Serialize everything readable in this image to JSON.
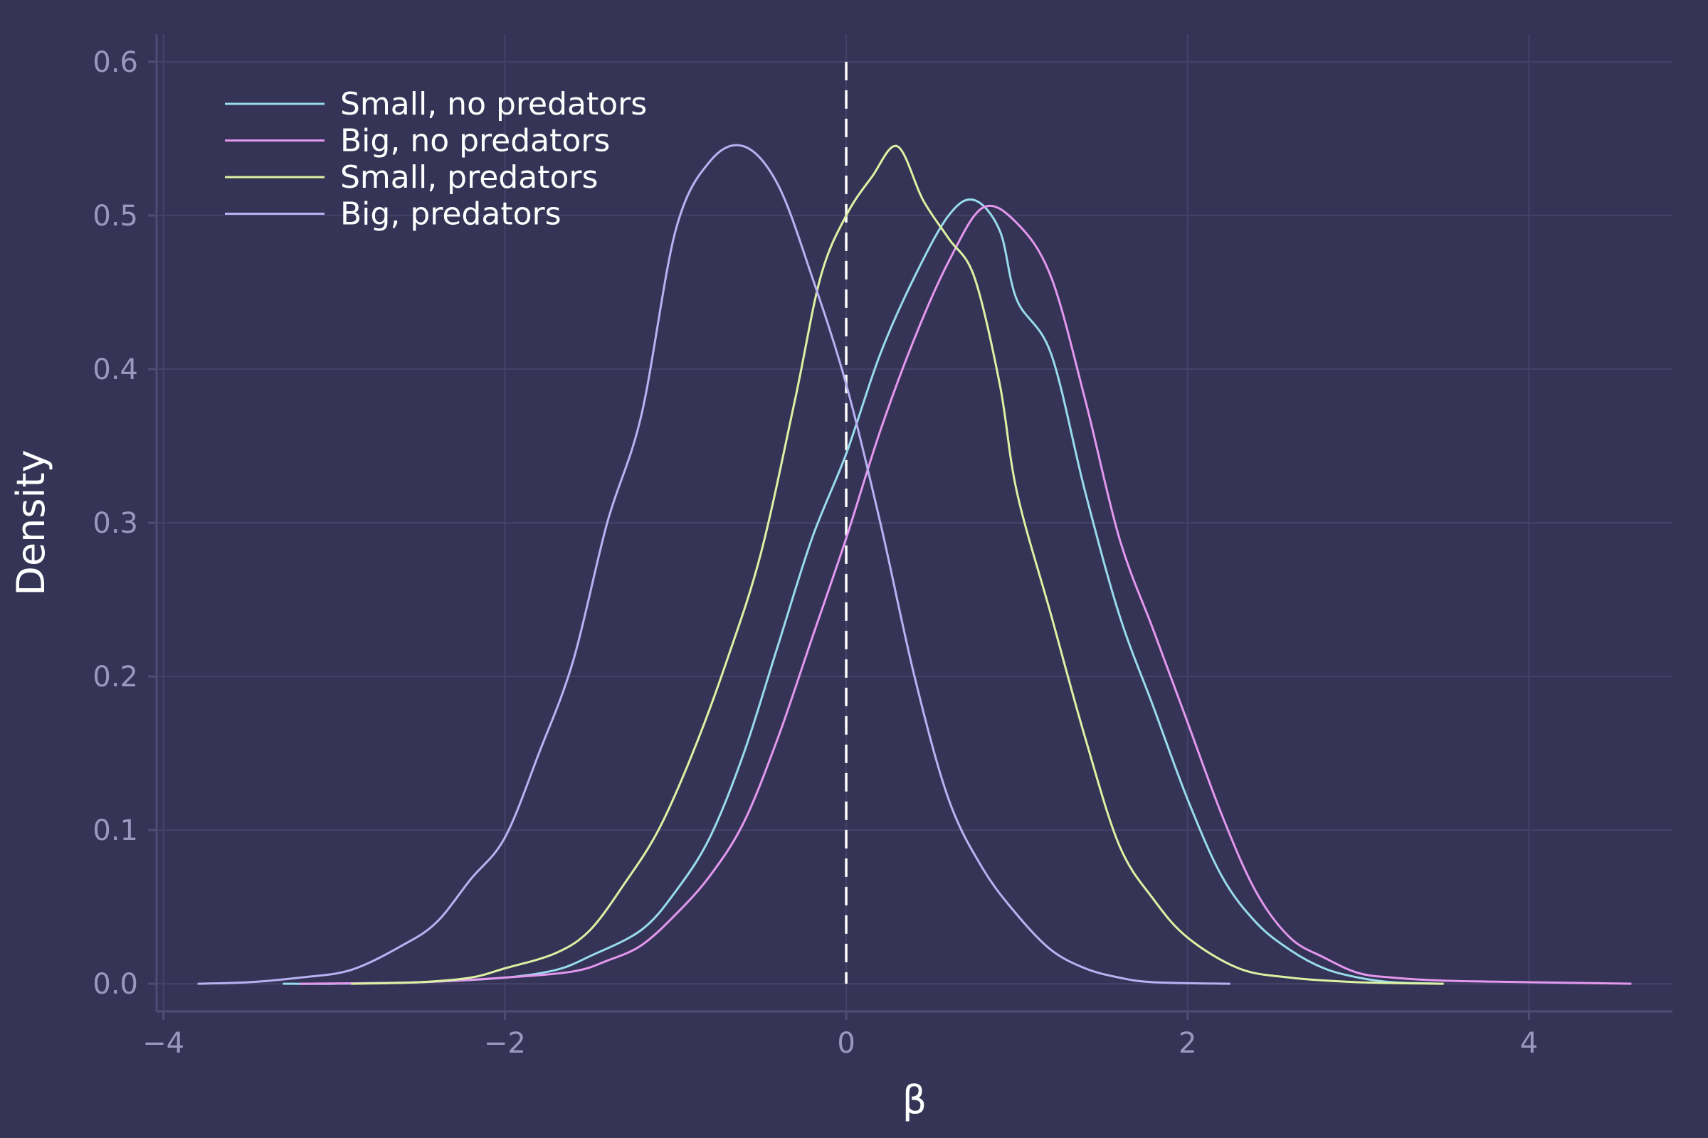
{
  "chart_data": {
    "type": "line",
    "xlabel": "β",
    "ylabel": "Density",
    "xlim": [
      -4.04,
      4.84
    ],
    "ylim": [
      -0.018,
      0.618
    ],
    "xticks": [
      -4,
      -2,
      0,
      2,
      4
    ],
    "xtick_labels": [
      "−4",
      "−2",
      "0",
      "2",
      "4"
    ],
    "yticks": [
      0.0,
      0.1,
      0.2,
      0.3,
      0.4,
      0.5,
      0.6
    ],
    "ytick_labels": [
      "0.0",
      "0.1",
      "0.2",
      "0.3",
      "0.4",
      "0.5",
      "0.6"
    ],
    "grid": true,
    "legend_position": "top-left",
    "reference_line": {
      "x": 0,
      "style": "dashed",
      "color": "#ffffff"
    },
    "series": [
      {
        "name": "Small, no predators",
        "color": "#98dbed",
        "points": [
          [
            -3.3,
            0.0
          ],
          [
            -3.0,
            0.0
          ],
          [
            -2.5,
            0.001
          ],
          [
            -2.0,
            0.004
          ],
          [
            -1.7,
            0.009
          ],
          [
            -1.5,
            0.018
          ],
          [
            -1.2,
            0.035
          ],
          [
            -1.0,
            0.06
          ],
          [
            -0.8,
            0.095
          ],
          [
            -0.6,
            0.15
          ],
          [
            -0.4,
            0.22
          ],
          [
            -0.2,
            0.29
          ],
          [
            0.0,
            0.345
          ],
          [
            0.2,
            0.41
          ],
          [
            0.4,
            0.46
          ],
          [
            0.6,
            0.5
          ],
          [
            0.75,
            0.51
          ],
          [
            0.9,
            0.49
          ],
          [
            1.0,
            0.445
          ],
          [
            1.2,
            0.41
          ],
          [
            1.4,
            0.32
          ],
          [
            1.6,
            0.24
          ],
          [
            1.8,
            0.18
          ],
          [
            2.0,
            0.12
          ],
          [
            2.2,
            0.07
          ],
          [
            2.4,
            0.04
          ],
          [
            2.6,
            0.022
          ],
          [
            2.8,
            0.01
          ],
          [
            3.0,
            0.004
          ],
          [
            3.2,
            0.001
          ],
          [
            3.5,
            0.0
          ]
        ]
      },
      {
        "name": "Big, no predators",
        "color": "#e398ee",
        "points": [
          [
            -3.2,
            0.0
          ],
          [
            -2.5,
            0.001
          ],
          [
            -2.0,
            0.004
          ],
          [
            -1.6,
            0.008
          ],
          [
            -1.4,
            0.015
          ],
          [
            -1.2,
            0.025
          ],
          [
            -1.0,
            0.045
          ],
          [
            -0.8,
            0.07
          ],
          [
            -0.6,
            0.105
          ],
          [
            -0.4,
            0.16
          ],
          [
            -0.2,
            0.225
          ],
          [
            0.0,
            0.29
          ],
          [
            0.2,
            0.36
          ],
          [
            0.4,
            0.42
          ],
          [
            0.6,
            0.47
          ],
          [
            0.8,
            0.505
          ],
          [
            1.0,
            0.495
          ],
          [
            1.2,
            0.46
          ],
          [
            1.4,
            0.38
          ],
          [
            1.6,
            0.29
          ],
          [
            1.8,
            0.23
          ],
          [
            2.0,
            0.17
          ],
          [
            2.2,
            0.11
          ],
          [
            2.4,
            0.06
          ],
          [
            2.6,
            0.03
          ],
          [
            2.8,
            0.017
          ],
          [
            3.0,
            0.007
          ],
          [
            3.2,
            0.004
          ],
          [
            3.5,
            0.002
          ],
          [
            4.0,
            0.001
          ],
          [
            4.6,
            0.0
          ]
        ]
      },
      {
        "name": "Small, predators",
        "color": "#dcf2a3",
        "points": [
          [
            -2.9,
            0.0
          ],
          [
            -2.5,
            0.001
          ],
          [
            -2.2,
            0.004
          ],
          [
            -2.0,
            0.01
          ],
          [
            -1.7,
            0.02
          ],
          [
            -1.5,
            0.035
          ],
          [
            -1.3,
            0.065
          ],
          [
            -1.1,
            0.1
          ],
          [
            -0.9,
            0.15
          ],
          [
            -0.7,
            0.21
          ],
          [
            -0.5,
            0.28
          ],
          [
            -0.3,
            0.38
          ],
          [
            -0.15,
            0.46
          ],
          [
            0.0,
            0.5
          ],
          [
            0.15,
            0.525
          ],
          [
            0.3,
            0.545
          ],
          [
            0.45,
            0.51
          ],
          [
            0.6,
            0.485
          ],
          [
            0.75,
            0.46
          ],
          [
            0.9,
            0.39
          ],
          [
            1.0,
            0.32
          ],
          [
            1.2,
            0.24
          ],
          [
            1.4,
            0.16
          ],
          [
            1.6,
            0.09
          ],
          [
            1.8,
            0.055
          ],
          [
            2.0,
            0.03
          ],
          [
            2.3,
            0.01
          ],
          [
            2.6,
            0.004
          ],
          [
            3.0,
            0.001
          ],
          [
            3.5,
            0.0
          ]
        ]
      },
      {
        "name": "Big, predators",
        "color": "#b8b2f3",
        "points": [
          [
            -3.8,
            0.0
          ],
          [
            -3.5,
            0.001
          ],
          [
            -3.2,
            0.004
          ],
          [
            -2.9,
            0.009
          ],
          [
            -2.6,
            0.025
          ],
          [
            -2.4,
            0.04
          ],
          [
            -2.2,
            0.068
          ],
          [
            -2.0,
            0.095
          ],
          [
            -1.8,
            0.15
          ],
          [
            -1.6,
            0.21
          ],
          [
            -1.4,
            0.3
          ],
          [
            -1.2,
            0.37
          ],
          [
            -1.0,
            0.49
          ],
          [
            -0.8,
            0.535
          ],
          [
            -0.6,
            0.545
          ],
          [
            -0.4,
            0.52
          ],
          [
            -0.2,
            0.46
          ],
          [
            0.0,
            0.39
          ],
          [
            0.2,
            0.3
          ],
          [
            0.4,
            0.2
          ],
          [
            0.6,
            0.12
          ],
          [
            0.8,
            0.075
          ],
          [
            1.0,
            0.045
          ],
          [
            1.2,
            0.022
          ],
          [
            1.4,
            0.01
          ],
          [
            1.6,
            0.004
          ],
          [
            1.8,
            0.001
          ],
          [
            2.25,
            0.0
          ]
        ]
      }
    ]
  }
}
